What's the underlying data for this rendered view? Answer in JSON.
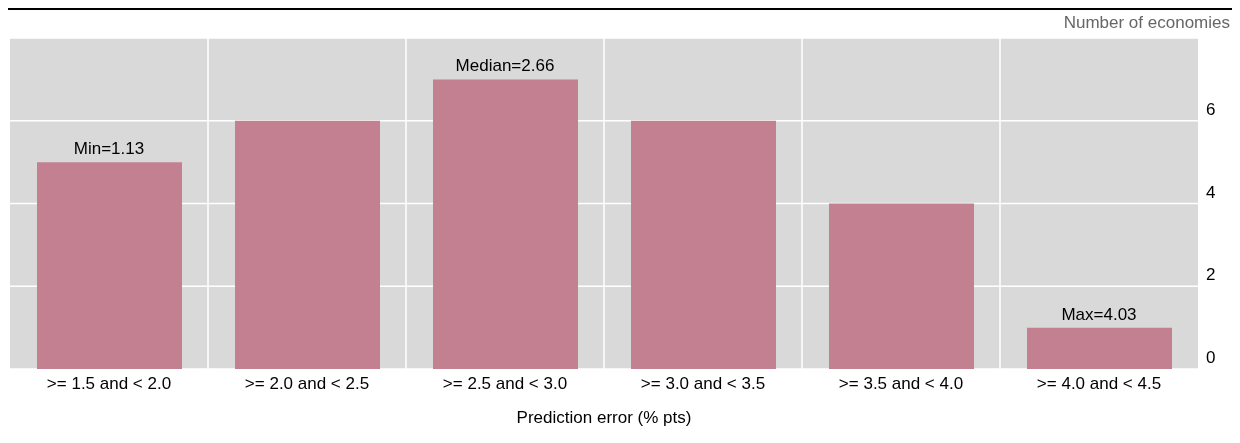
{
  "chart_data": {
    "type": "bar",
    "ylabel": "Number of economies",
    "xlabel": "Prediction error (% pts)",
    "categories": [
      ">= 1.5 and < 2.0",
      ">= 2.0 and < 2.5",
      ">= 2.5 and < 3.0",
      ">= 3.0 and < 3.5",
      ">= 3.5 and < 4.0",
      ">= 4.0 and < 4.5"
    ],
    "values": [
      5,
      6,
      7,
      6,
      4,
      1
    ],
    "color": "#c28090",
    "ylim": [
      0,
      8
    ],
    "yticks": [
      0,
      2,
      4,
      6
    ],
    "grid": true,
    "annotations": [
      {
        "text": "Min=1.13",
        "x": ">= 1.5 and < 2.0",
        "y": 5
      },
      {
        "text": "Median=2.66",
        "x": ">= 2.5 and < 3.0",
        "y": 7
      },
      {
        "text": "Max=4.03",
        "x": ">= 4.0 and < 4.5",
        "y": 1
      }
    ]
  }
}
